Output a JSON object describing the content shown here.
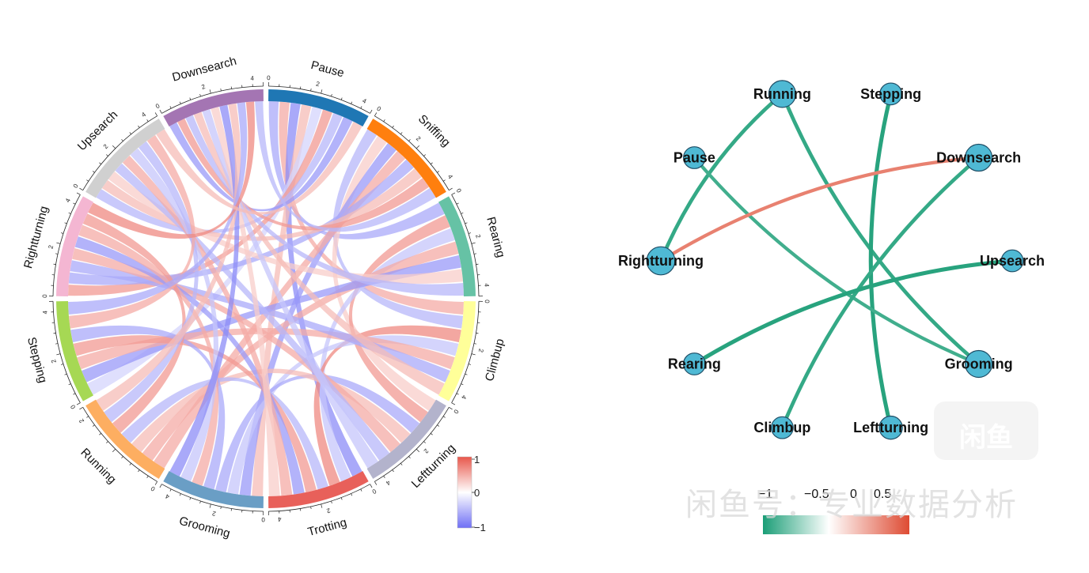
{
  "chart_data": [
    {
      "type": "chord",
      "sectors": [
        {
          "name": "Pause",
          "color": "#1f77b4",
          "ticks": [
            "0",
            "2",
            "4"
          ]
        },
        {
          "name": "Sniffing",
          "color": "#ff7f0e",
          "ticks": [
            "0",
            "2",
            "4"
          ]
        },
        {
          "name": "Rearing",
          "color": "#66c2a5",
          "ticks": [
            "0",
            "2",
            "4"
          ]
        },
        {
          "name": "Climbup",
          "color": "#ffff99",
          "ticks": [
            "0",
            "2",
            "4"
          ]
        },
        {
          "name": "Leftturning",
          "color": "#b3b3cc",
          "ticks": [
            "0",
            "2",
            "4"
          ]
        },
        {
          "name": "Trotting",
          "color": "#e8605a",
          "ticks": [
            "0",
            "2",
            "4"
          ]
        },
        {
          "name": "Grooming",
          "color": "#6a9ec5",
          "ticks": [
            "0",
            "2",
            "4"
          ]
        },
        {
          "name": "Running",
          "color": "#fdae61",
          "ticks": [
            "0",
            "2"
          ]
        },
        {
          "name": "Stepping",
          "color": "#a6d854",
          "ticks": [
            "0",
            "2",
            "4"
          ]
        },
        {
          "name": "Rightturning",
          "color": "#f4b6d2",
          "ticks": [
            "0",
            "2",
            "4"
          ]
        },
        {
          "name": "Upsearch",
          "color": "#d0d0d0",
          "ticks": [
            "0",
            "2",
            "4"
          ]
        },
        {
          "name": "Downsearch",
          "color": "#a475b3",
          "ticks": [
            "0",
            "2",
            "4"
          ]
        }
      ],
      "links": [
        [
          0,
          2,
          -0.6
        ],
        [
          0,
          3,
          0.5
        ],
        [
          0,
          5,
          -0.8
        ],
        [
          0,
          6,
          0.4
        ],
        [
          0,
          8,
          -0.3
        ],
        [
          0,
          9,
          0.6
        ],
        [
          0,
          10,
          -0.5
        ],
        [
          0,
          11,
          -0.7
        ],
        [
          1,
          3,
          -0.5
        ],
        [
          1,
          4,
          0.3
        ],
        [
          1,
          6,
          -0.7
        ],
        [
          1,
          7,
          0.5
        ],
        [
          1,
          9,
          -0.6
        ],
        [
          1,
          10,
          0.4
        ],
        [
          1,
          11,
          0.6
        ],
        [
          2,
          4,
          0.6
        ],
        [
          2,
          5,
          -0.4
        ],
        [
          2,
          7,
          0.5
        ],
        [
          2,
          8,
          -0.7
        ],
        [
          2,
          10,
          0.3
        ],
        [
          2,
          11,
          -0.5
        ],
        [
          3,
          5,
          0.7
        ],
        [
          3,
          6,
          -0.4
        ],
        [
          3,
          8,
          0.5
        ],
        [
          3,
          9,
          -0.6
        ],
        [
          3,
          11,
          0.4
        ],
        [
          4,
          6,
          -0.6
        ],
        [
          4,
          7,
          0.4
        ],
        [
          4,
          9,
          0.5
        ],
        [
          4,
          10,
          -0.5
        ],
        [
          4,
          11,
          -0.4
        ],
        [
          5,
          7,
          -0.5
        ],
        [
          5,
          8,
          0.6
        ],
        [
          5,
          9,
          -0.7
        ],
        [
          5,
          10,
          0.5
        ],
        [
          5,
          11,
          0.3
        ],
        [
          6,
          8,
          -0.6
        ],
        [
          6,
          9,
          0.5
        ],
        [
          6,
          10,
          -0.4
        ],
        [
          6,
          11,
          -0.8
        ],
        [
          7,
          9,
          0.6
        ],
        [
          7,
          10,
          -0.5
        ],
        [
          7,
          11,
          0.4
        ],
        [
          8,
          10,
          0.5
        ],
        [
          8,
          11,
          -0.6
        ],
        [
          9,
          11,
          0.7
        ],
        [
          10,
          0,
          0.4
        ],
        [
          11,
          1,
          -0.5
        ]
      ],
      "legend": {
        "max_label": "1",
        "mid_label": "0",
        "min_label": "−1",
        "high_color": "#e8574b",
        "mid_color": "#ffffff",
        "low_color": "#6f6ff5"
      }
    },
    {
      "type": "network",
      "nodes": [
        {
          "name": "Running",
          "size": 1.0
        },
        {
          "name": "Stepping",
          "size": 0.6
        },
        {
          "name": "Pause",
          "size": 0.6
        },
        {
          "name": "Downsearch",
          "size": 1.0
        },
        {
          "name": "Rightturning",
          "size": 1.1
        },
        {
          "name": "Upsearch",
          "size": 0.6
        },
        {
          "name": "Rearing",
          "size": 0.6
        },
        {
          "name": "Grooming",
          "size": 1.0
        },
        {
          "name": "Climbup",
          "size": 0.6
        },
        {
          "name": "Leftturning",
          "size": 0.7
        }
      ],
      "edges": [
        {
          "from": "Running",
          "to": "Rightturning",
          "weight": -0.8
        },
        {
          "from": "Running",
          "to": "Grooming",
          "weight": -0.8
        },
        {
          "from": "Stepping",
          "to": "Leftturning",
          "weight": -0.9
        },
        {
          "from": "Pause",
          "to": "Grooming",
          "weight": -0.7
        },
        {
          "from": "Downsearch",
          "to": "Rightturning",
          "weight": 0.7
        },
        {
          "from": "Downsearch",
          "to": "Climbup",
          "weight": -0.8
        },
        {
          "from": "Upsearch",
          "to": "Rearing",
          "weight": -0.9
        }
      ],
      "node_color": "#4fb9d4",
      "legend": {
        "labels": [
          "−1",
          "−0.5",
          "0",
          "0.5"
        ],
        "low_color": "#1b9e77",
        "mid_color": "#ffffff",
        "high_color": "#de4b33"
      }
    }
  ],
  "watermark": {
    "text": "闲鱼号：专业数据分析",
    "logo_text": "闲鱼"
  }
}
